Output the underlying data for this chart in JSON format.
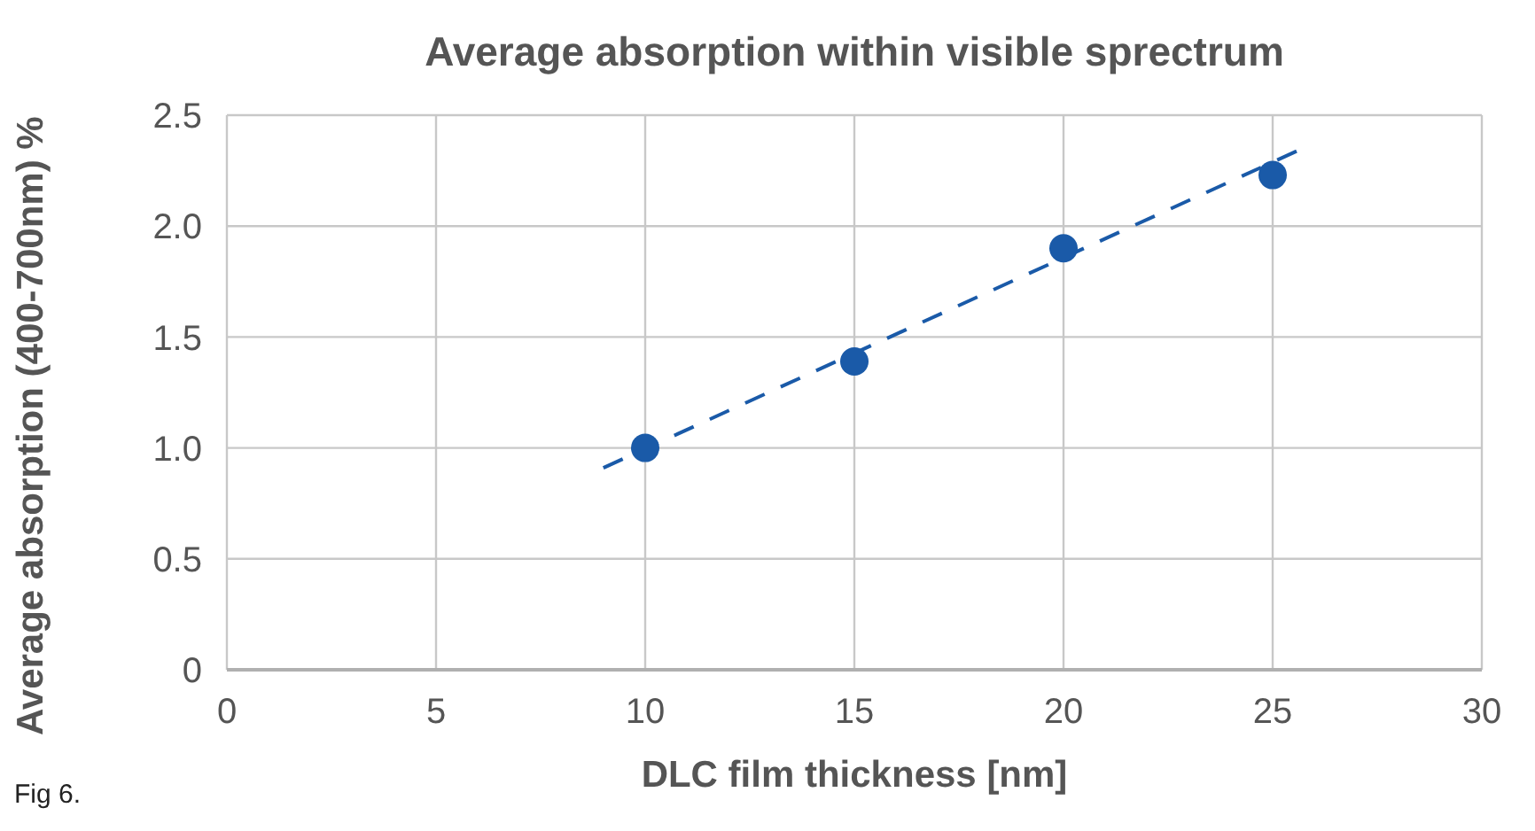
{
  "chart_data": {
    "type": "scatter",
    "title": "Average absorption within visible sprectrum",
    "xlabel": "DLC film thickness [nm]",
    "ylabel": "Average absorption (400-700nm) %",
    "annotations": [
      "Fig 6."
    ],
    "series": [
      {
        "color": "#1a5aa8",
        "x": [
          10,
          15,
          20,
          25
        ],
        "values": [
          1.0,
          1.39,
          1.9,
          2.23
        ],
        "marker": "circle"
      },
      {
        "type": "line",
        "color": "#1a5aa8",
        "x": [
          9,
          25.6
        ],
        "values": [
          0.91,
          2.34
        ],
        "line_style": "dashed",
        "marker": "none"
      }
    ],
    "xlim": [
      0,
      30
    ],
    "xticks": [
      0,
      5,
      10,
      15,
      20,
      25,
      30
    ],
    "ylim": [
      0,
      2.5
    ],
    "yticks": [
      0,
      0.5,
      {
        "value": 1,
        "label": "1.0"
      },
      1.5,
      {
        "value": 2,
        "label": "2.0"
      },
      2.5
    ],
    "grid": true,
    "legend": false
  }
}
